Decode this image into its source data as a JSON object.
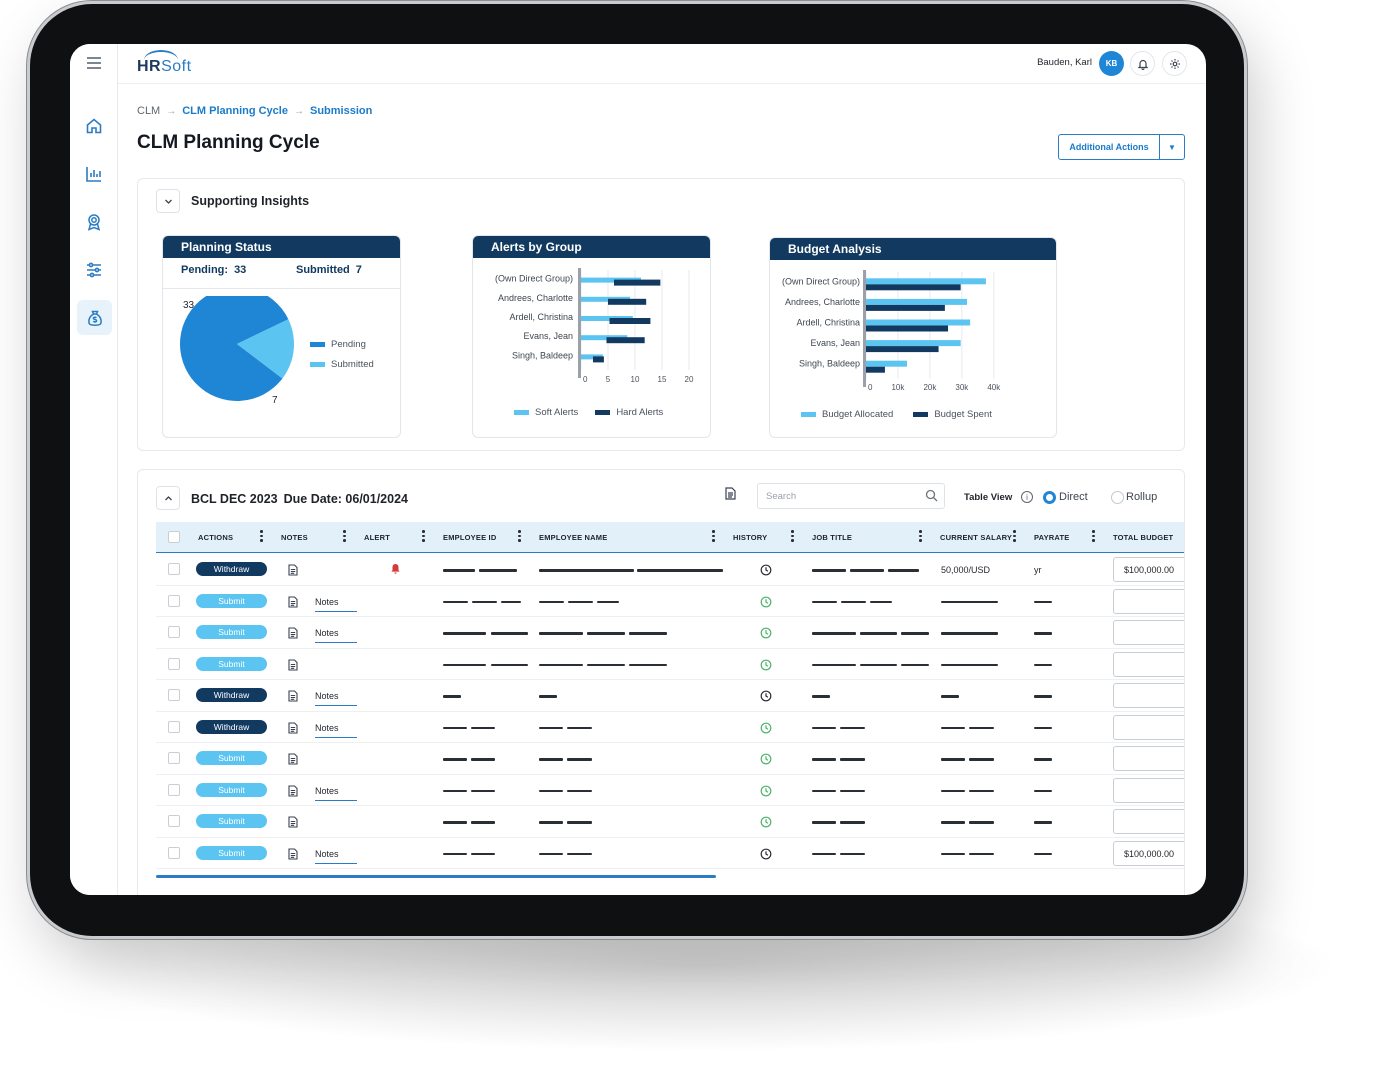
{
  "header": {
    "logo_bold": "HR",
    "logo_light": "Soft",
    "user_name": "Bauden, Karl",
    "user_initials": "KB"
  },
  "breadcrumb": {
    "items": [
      "CLM",
      "CLM Planning Cycle",
      "Submission"
    ]
  },
  "page": {
    "title": "CLM Planning Cycle",
    "additional_actions_label": "Additional Actions"
  },
  "insights": {
    "title": "Supporting Insights",
    "planning_status": {
      "title": "Planning Status",
      "pending_label": "Pending:",
      "pending_value": "33",
      "submitted_label": "Submitted",
      "submitted_value": "7",
      "pie_label_pending": "33",
      "pie_label_submitted": "7",
      "legend": [
        "Pending",
        "Submitted"
      ]
    },
    "alerts_by_group": {
      "title": "Alerts by Group",
      "legend": [
        "Soft Alerts",
        "Hard Alerts"
      ],
      "x_ticks": [
        "0",
        "5",
        "10",
        "15",
        "20"
      ]
    },
    "budget_analysis": {
      "title": "Budget Analysis",
      "legend": [
        "Budget Allocated",
        "Budget Spent"
      ],
      "x_ticks": [
        "0",
        "10k",
        "20k",
        "30k",
        "40k"
      ]
    }
  },
  "chart_data": [
    {
      "type": "pie",
      "title": "Planning Status",
      "categories": [
        "Pending",
        "Submitted"
      ],
      "values": [
        33,
        7
      ],
      "colors": [
        "#1f86d6",
        "#5cc4f1"
      ]
    },
    {
      "type": "bar",
      "orientation": "horizontal",
      "stacked": true,
      "title": "Alerts by Group",
      "categories": [
        "(Own Direct Group)",
        "Andrees, Charlotte",
        "Ardell, Christina",
        "Evans, Jean",
        "Singh, Baldeep"
      ],
      "series": [
        {
          "name": "Soft Alerts",
          "values": [
            11,
            9,
            9.5,
            8.5,
            4
          ],
          "color": "#5cc4f1"
        },
        {
          "name": "Hard Alerts",
          "values": [
            8.5,
            7,
            7.5,
            7,
            2
          ],
          "color": "#123a60"
        }
      ],
      "xlim": [
        0,
        22
      ]
    },
    {
      "type": "bar",
      "orientation": "horizontal",
      "title": "Budget Analysis",
      "categories": [
        "(Own Direct Group)",
        "Andrees, Charlotte",
        "Ardell, Christina",
        "Evans, Jean",
        "Singh, Baldeep"
      ],
      "series": [
        {
          "name": "Budget Allocated",
          "values": [
            38000,
            32000,
            33000,
            30000,
            13000
          ],
          "color": "#5cc4f1"
        },
        {
          "name": "Budget Spent",
          "values": [
            30000,
            25000,
            26000,
            23000,
            6000
          ],
          "color": "#123a60"
        }
      ],
      "xlim": [
        0,
        45000
      ]
    }
  ],
  "table": {
    "title": "BCL DEC 2023",
    "due_date": "Due Date: 06/01/2024",
    "search_placeholder": "Search",
    "table_view_label": "Table View",
    "view_options": [
      "Direct",
      "Rollup"
    ],
    "selected_view": "Direct",
    "columns": [
      "ACTIONS",
      "NOTES",
      "ALERT",
      "EMPLOYEE ID",
      "EMPLOYEE NAME",
      "HISTORY",
      "JOB TITLE",
      "CURRENT SALARY",
      "PAYRATE",
      "TOTAL BUDGET"
    ],
    "rows": [
      {
        "action": "Withdraw",
        "notes": "",
        "alert": true,
        "history": "dark",
        "salary": "50,000/USD",
        "payrate": "yr",
        "budget": "$100,000.00"
      },
      {
        "action": "Submit",
        "notes": "Notes",
        "alert": false,
        "history": "green",
        "salary": "",
        "payrate": "",
        "budget": ""
      },
      {
        "action": "Submit",
        "notes": "Notes",
        "alert": false,
        "history": "green",
        "salary": "",
        "payrate": "",
        "budget": ""
      },
      {
        "action": "Submit",
        "notes": "",
        "alert": false,
        "history": "green",
        "salary": "",
        "payrate": "",
        "budget": ""
      },
      {
        "action": "Withdraw",
        "notes": "Notes",
        "alert": false,
        "history": "dark",
        "salary": "",
        "payrate": "",
        "budget": ""
      },
      {
        "action": "Withdraw",
        "notes": "Notes",
        "alert": false,
        "history": "green",
        "salary": "",
        "payrate": "",
        "budget": ""
      },
      {
        "action": "Submit",
        "notes": "",
        "alert": false,
        "history": "green",
        "salary": "",
        "payrate": "",
        "budget": ""
      },
      {
        "action": "Submit",
        "notes": "Notes",
        "alert": false,
        "history": "green",
        "salary": "",
        "payrate": "",
        "budget": ""
      },
      {
        "action": "Submit",
        "notes": "",
        "alert": false,
        "history": "green",
        "salary": "",
        "payrate": "",
        "budget": ""
      },
      {
        "action": "Submit",
        "notes": "Notes",
        "alert": false,
        "history": "dark",
        "salary": "",
        "payrate": "",
        "budget": "$100,000.00"
      }
    ]
  },
  "icons": {
    "sidebar": [
      "menu-icon",
      "home-icon",
      "chart-icon",
      "award-icon",
      "sliders-icon",
      "money-bag-icon"
    ],
    "topbar": [
      "bell-icon",
      "gear-icon"
    ]
  }
}
